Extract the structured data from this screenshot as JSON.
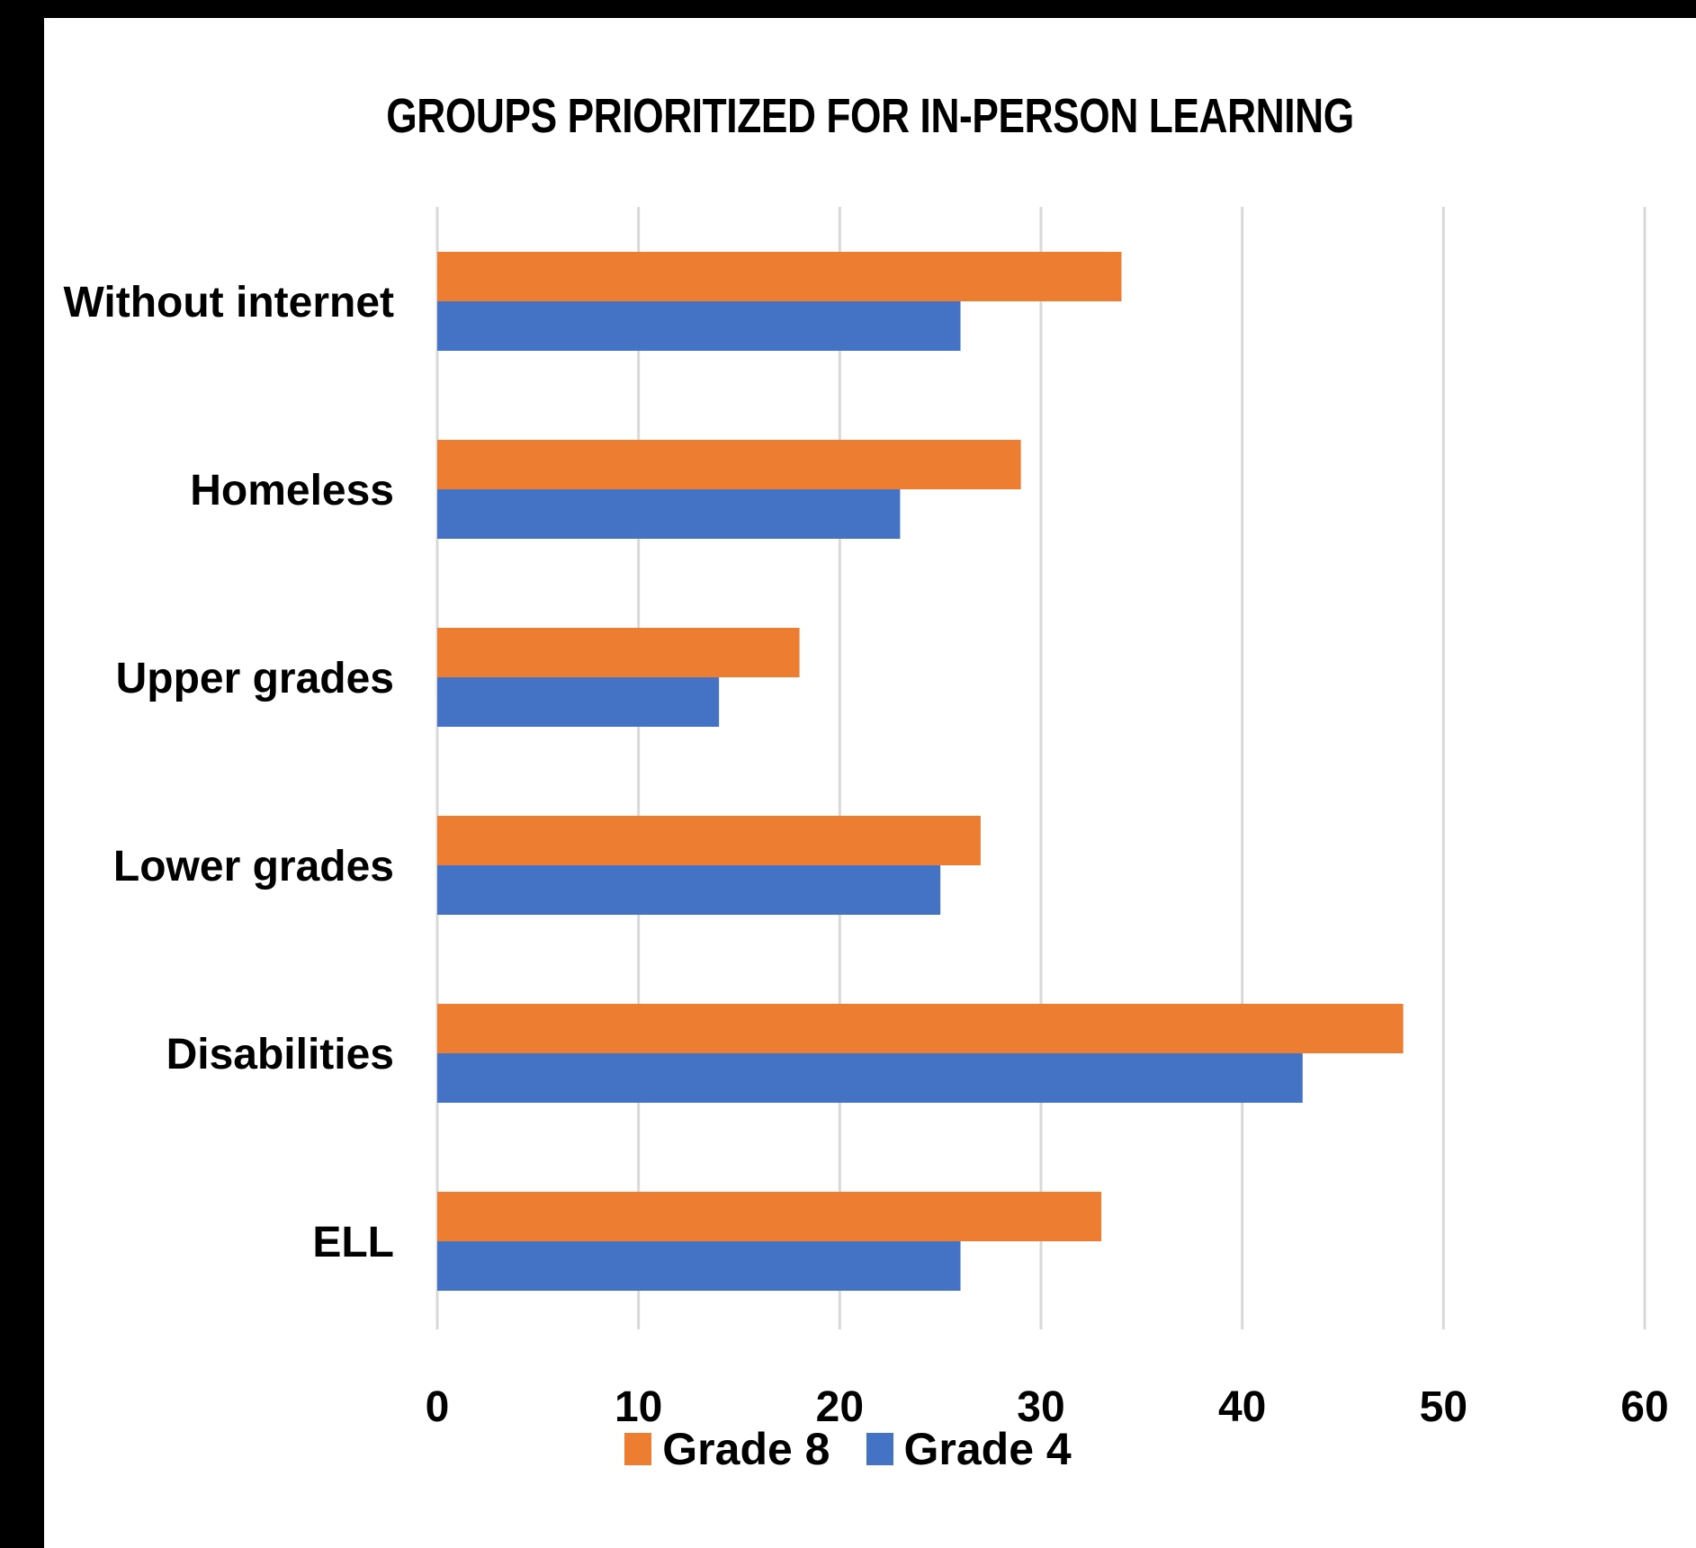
{
  "chart_data": {
    "type": "bar",
    "orientation": "horizontal",
    "title": "GROUPS PRIORITIZED FOR IN-PERSON LEARNING",
    "xlabel": "",
    "ylabel": "",
    "categories": [
      "Without internet",
      "Homeless",
      "Upper grades",
      "Lower grades",
      "Disabilities",
      "ELL"
    ],
    "series": [
      {
        "name": "Grade 8",
        "color": "#ED7D31",
        "values": [
          34,
          29,
          18,
          27,
          48,
          33
        ]
      },
      {
        "name": "Grade 4",
        "color": "#4472C4",
        "values": [
          26,
          23,
          14,
          25,
          43,
          26
        ]
      }
    ],
    "xlim": [
      0,
      60
    ],
    "x_ticks": [
      "0",
      "10",
      "20",
      "30",
      "40",
      "50",
      "60"
    ],
    "grid": "vertical",
    "legend_position": "bottom"
  }
}
